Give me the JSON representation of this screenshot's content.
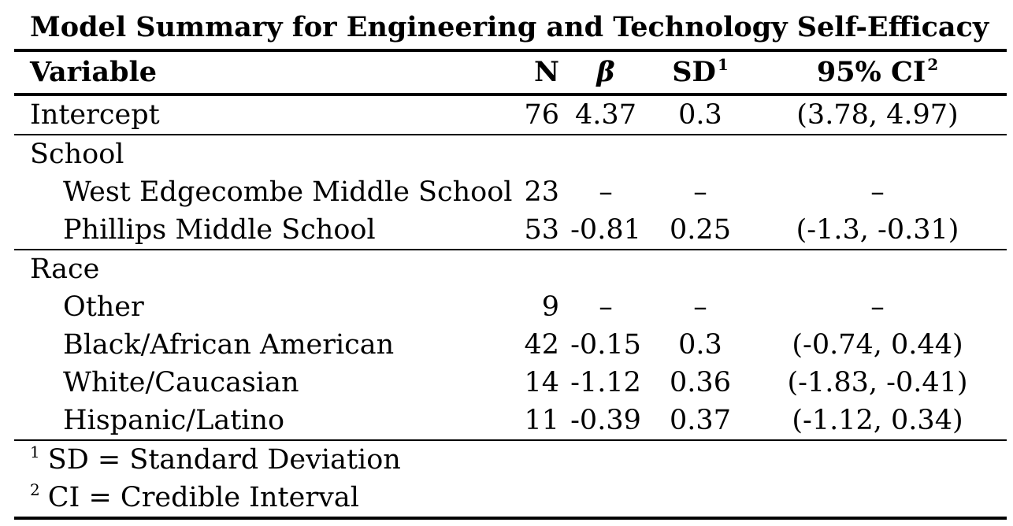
{
  "title": "Model Summary for Engineering and Technology Self-Efficacy",
  "headers": {
    "variable": "Variable",
    "n": "N",
    "beta": "β",
    "sd": "SD",
    "sd_sup": "1",
    "ci": "95% CI",
    "ci_sup": "2"
  },
  "rows": [
    {
      "label": "Intercept",
      "n": "76",
      "beta": "4.37",
      "sd": "0.3",
      "ci": "(3.78, 4.97)"
    },
    {
      "label": "School"
    },
    {
      "label": "West Edgecombe Middle School",
      "n": "23",
      "beta": "–",
      "sd": "–",
      "ci": "–"
    },
    {
      "label": "Phillips Middle School",
      "n": "53",
      "beta": "-0.81",
      "sd": "0.25",
      "ci": "(-1.3, -0.31)"
    },
    {
      "label": "Race"
    },
    {
      "label": "Other",
      "n": "9",
      "beta": "–",
      "sd": "–",
      "ci": "–"
    },
    {
      "label": "Black/African American",
      "n": "42",
      "beta": "-0.15",
      "sd": "0.3",
      "ci": "(-0.74, 0.44)"
    },
    {
      "label": "White/Caucasian",
      "n": "14",
      "beta": "-1.12",
      "sd": "0.36",
      "ci": "(-1.83, -0.41)"
    },
    {
      "label": "Hispanic/Latino",
      "n": "11",
      "beta": "-0.39",
      "sd": "0.37",
      "ci": "(-1.12, 0.34)"
    }
  ],
  "footnotes": [
    {
      "mark": "1",
      "text": "SD = Standard Deviation"
    },
    {
      "mark": "2",
      "text": "CI = Credible Interval"
    }
  ]
}
